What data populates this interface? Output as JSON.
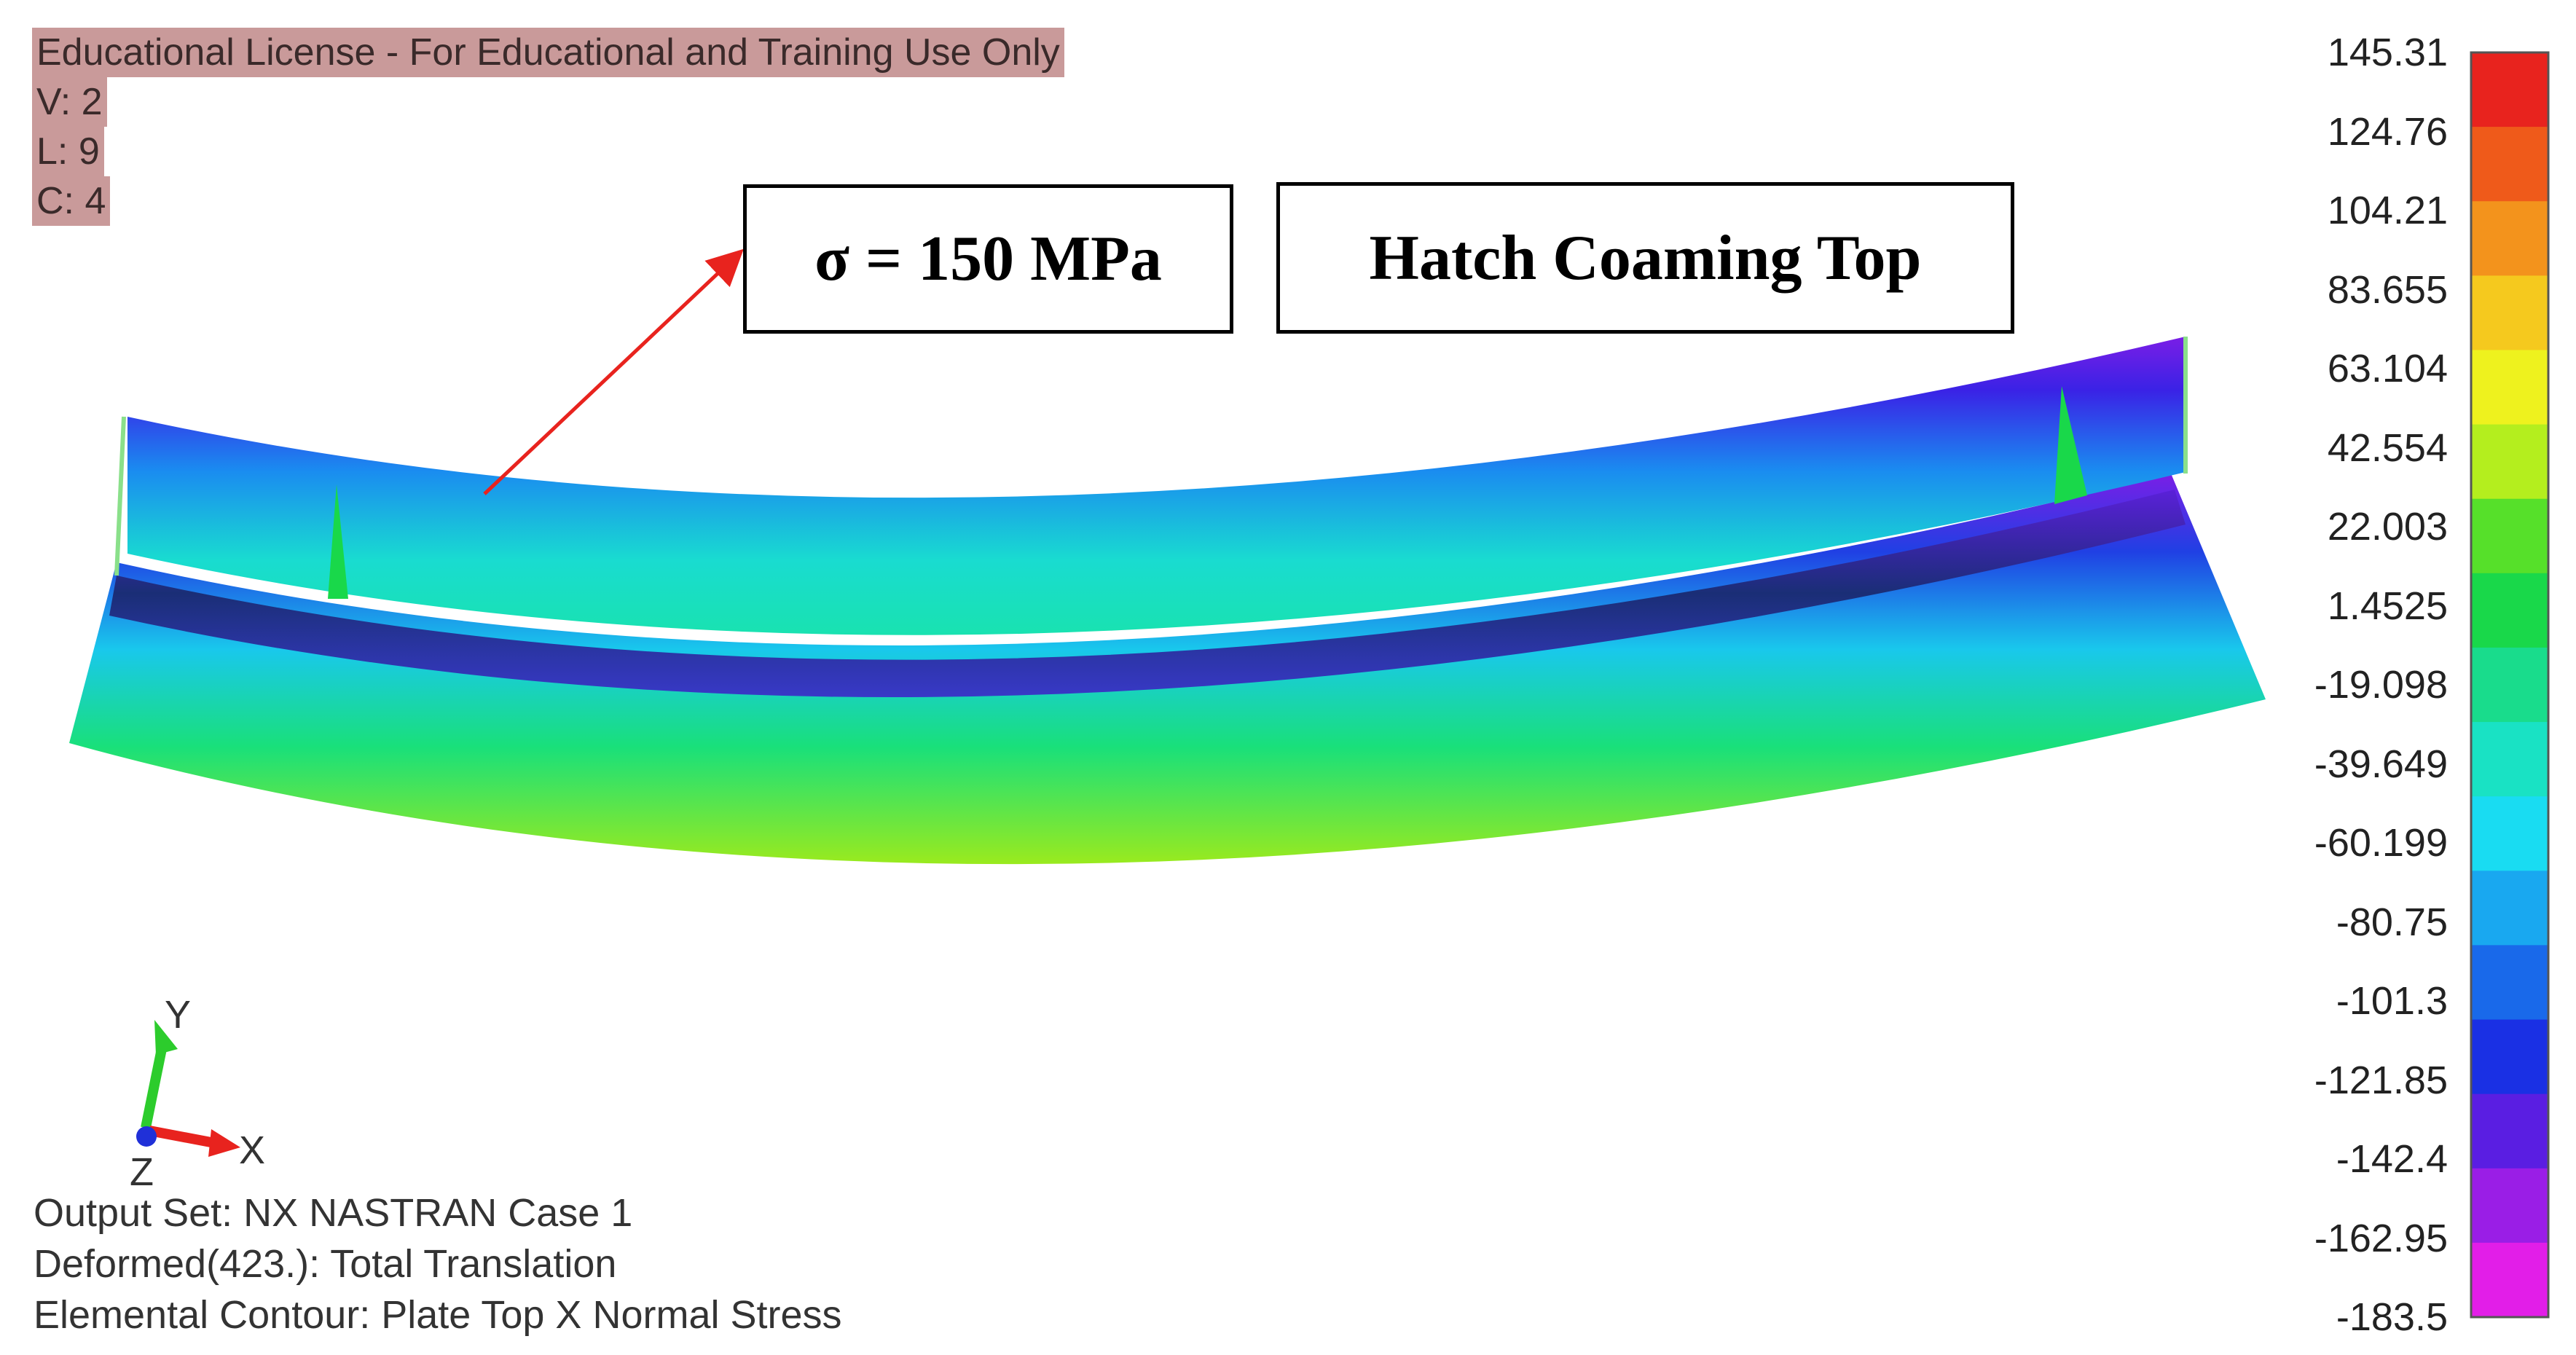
{
  "license": {
    "title": "Educational License - For Educational and Training Use Only",
    "lines": [
      "V: 2",
      "L: 9",
      "C: 4"
    ]
  },
  "callouts": {
    "stress": "σ = 150 MPa",
    "location": "Hatch Coaming Top"
  },
  "output_info": {
    "output_set": "Output Set: NX NASTRAN Case 1",
    "deformed": "Deformed(423.): Total Translation",
    "contour": "Elemental Contour: Plate Top X Normal Stress"
  },
  "axes_triad": {
    "x": "X",
    "y": "Y",
    "z": "Z"
  },
  "color_scale": {
    "labels": [
      "145.31",
      "124.76",
      "104.21",
      "83.655",
      "63.104",
      "42.554",
      "22.003",
      "1.4525",
      "-19.098",
      "-39.649",
      "-60.199",
      "-80.75",
      "-101.3",
      "-121.85",
      "-142.4",
      "-162.95",
      "-183.5"
    ],
    "colors": [
      "#e8231e",
      "#ef5a1a",
      "#f3931c",
      "#f5c91e",
      "#eef21e",
      "#b4ee1e",
      "#56e02a",
      "#19d84a",
      "#19dc8c",
      "#19e2c4",
      "#19dcf2",
      "#19a8f0",
      "#1969ea",
      "#1a30e4",
      "#5a1ee2",
      "#9a1ee6",
      "#e21ee8"
    ]
  },
  "colors": {
    "arrow": "#e8231e",
    "beam_top": "#7a1ee6",
    "beam_mid": "#19dcd6",
    "beam_bottom": "#86ea1e"
  }
}
